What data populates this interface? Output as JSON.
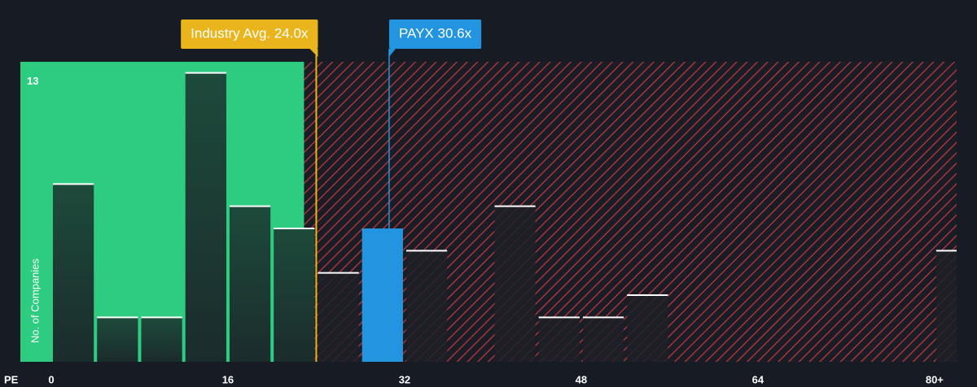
{
  "chart_data": {
    "type": "histogram",
    "x_label": "PE",
    "y_label": "No. of Companies",
    "bins": [
      0,
      4,
      8,
      12,
      16,
      20,
      24,
      28,
      32,
      36,
      40,
      44,
      48,
      52,
      56,
      60,
      64,
      68,
      72,
      76,
      80,
      84
    ],
    "values": [
      8,
      2,
      2,
      13,
      7,
      6,
      4,
      6,
      5,
      0,
      7,
      2,
      2,
      3,
      0,
      0,
      0,
      0,
      0,
      0,
      5
    ],
    "xlim": [
      -2.8,
      82
    ],
    "ylim": [
      0,
      13.5
    ],
    "xticks": [
      0,
      16,
      32,
      48,
      64,
      {
        "value": 80,
        "label": "80+"
      }
    ],
    "yticks": [
      13
    ],
    "colors": {
      "good_zone": "#2ecc80",
      "bad_zone": "#c0393b",
      "highlight": "#2394e0",
      "average": "#e9b41c"
    },
    "annotations": [
      {
        "label": "Industry Avg. 24.0x",
        "value": 24.0,
        "kind": "average"
      },
      {
        "label": "PAYX 30.6x",
        "value": 30.6,
        "kind": "highlight"
      }
    ]
  }
}
